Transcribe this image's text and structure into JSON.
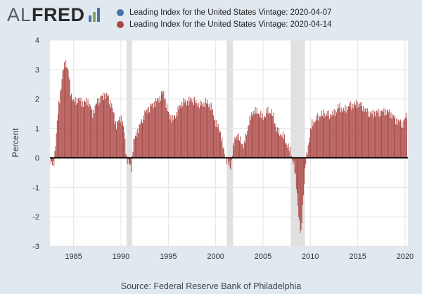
{
  "header": {
    "logo_text_al": "AL",
    "logo_text_fred": "FRED",
    "logo_icon": "fred-bar-chart-icon"
  },
  "legend": [
    {
      "label": "Leading Index for the United States Vintage: 2020-04-07",
      "color": "#4572a7"
    },
    {
      "label": "Leading Index for the United States Vintage: 2020-04-14",
      "color": "#aa4643"
    }
  ],
  "footer": {
    "source": "Source: Federal Reserve Bank of Philadelphia"
  },
  "chart_data": {
    "type": "bar",
    "ylabel": "Percent",
    "xlabel": "",
    "ylim": [
      -3,
      4
    ],
    "xlim": [
      1982.5,
      2020.3
    ],
    "yticks": [
      -3,
      -2,
      -1,
      0,
      1,
      2,
      3,
      4
    ],
    "xticks": [
      1985,
      1990,
      1995,
      2000,
      2005,
      2010,
      2015,
      2020
    ],
    "grid": true,
    "legend_position": "top",
    "recessions": [
      [
        1990.58,
        1991.17
      ],
      [
        2001.17,
        2001.83
      ],
      [
        2007.92,
        2009.42
      ]
    ],
    "series": [
      {
        "name": "Leading Index for the United States Vintage: 2020-04-07",
        "color": "#4572a7"
      },
      {
        "name": "Leading Index for the United States Vintage: 2020-04-14",
        "color": "#aa4643"
      }
    ],
    "anchors": [
      [
        1982.6,
        -0.2
      ],
      [
        1982.9,
        -0.25
      ],
      [
        1983.1,
        0.5
      ],
      [
        1983.4,
        1.7
      ],
      [
        1983.7,
        2.5
      ],
      [
        1983.9,
        3.0
      ],
      [
        1984.2,
        3.3
      ],
      [
        1984.5,
        2.8
      ],
      [
        1984.7,
        2.2
      ],
      [
        1985.0,
        1.9
      ],
      [
        1985.5,
        2.0
      ],
      [
        1986.0,
        1.85
      ],
      [
        1986.5,
        1.95
      ],
      [
        1987.0,
        1.5
      ],
      [
        1987.5,
        1.9
      ],
      [
        1988.0,
        2.1
      ],
      [
        1988.5,
        2.15
      ],
      [
        1989.0,
        1.8
      ],
      [
        1989.5,
        1.1
      ],
      [
        1990.0,
        1.4
      ],
      [
        1990.3,
        1.0
      ],
      [
        1990.6,
        0.0
      ],
      [
        1990.9,
        -0.25
      ],
      [
        1991.1,
        -0.35
      ],
      [
        1991.3,
        0.5
      ],
      [
        1991.6,
        0.8
      ],
      [
        1992.0,
        1.1
      ],
      [
        1992.5,
        1.5
      ],
      [
        1993.0,
        1.7
      ],
      [
        1993.5,
        1.85
      ],
      [
        1994.0,
        2.0
      ],
      [
        1994.5,
        2.25
      ],
      [
        1995.0,
        1.5
      ],
      [
        1995.5,
        1.3
      ],
      [
        1996.0,
        1.6
      ],
      [
        1996.5,
        1.9
      ],
      [
        1997.0,
        1.9
      ],
      [
        1997.5,
        2.0
      ],
      [
        1998.0,
        1.85
      ],
      [
        1998.5,
        1.8
      ],
      [
        1999.0,
        1.9
      ],
      [
        1999.5,
        1.75
      ],
      [
        2000.0,
        1.2
      ],
      [
        2000.5,
        0.9
      ],
      [
        2000.8,
        0.3
      ],
      [
        2001.2,
        -0.1
      ],
      [
        2001.6,
        -0.35
      ],
      [
        2001.8,
        0.3
      ],
      [
        2002.2,
        0.8
      ],
      [
        2002.6,
        0.6
      ],
      [
        2003.0,
        0.4
      ],
      [
        2003.5,
        1.2
      ],
      [
        2004.0,
        1.6
      ],
      [
        2004.5,
        1.55
      ],
      [
        2005.0,
        1.35
      ],
      [
        2005.5,
        1.6
      ],
      [
        2006.0,
        1.5
      ],
      [
        2006.5,
        0.9
      ],
      [
        2007.0,
        0.8
      ],
      [
        2007.5,
        0.5
      ],
      [
        2008.0,
        0.1
      ],
      [
        2008.3,
        -0.3
      ],
      [
        2008.6,
        -1.2
      ],
      [
        2008.8,
        -2.1
      ],
      [
        2009.0,
        -2.7
      ],
      [
        2009.2,
        -1.5
      ],
      [
        2009.5,
        -0.2
      ],
      [
        2009.8,
        0.5
      ],
      [
        2010.2,
        1.2
      ],
      [
        2010.6,
        1.3
      ],
      [
        2011.0,
        1.45
      ],
      [
        2011.5,
        1.5
      ],
      [
        2012.0,
        1.45
      ],
      [
        2012.5,
        1.5
      ],
      [
        2013.0,
        1.75
      ],
      [
        2013.5,
        1.6
      ],
      [
        2014.0,
        1.75
      ],
      [
        2014.5,
        1.8
      ],
      [
        2015.0,
        1.85
      ],
      [
        2015.5,
        1.75
      ],
      [
        2016.0,
        1.55
      ],
      [
        2016.5,
        1.5
      ],
      [
        2017.0,
        1.55
      ],
      [
        2017.5,
        1.55
      ],
      [
        2018.0,
        1.6
      ],
      [
        2018.5,
        1.5
      ],
      [
        2019.0,
        1.3
      ],
      [
        2019.5,
        1.2
      ],
      [
        2019.8,
        1.15
      ],
      [
        2020.0,
        1.35
      ],
      [
        2020.2,
        1.5
      ]
    ]
  }
}
